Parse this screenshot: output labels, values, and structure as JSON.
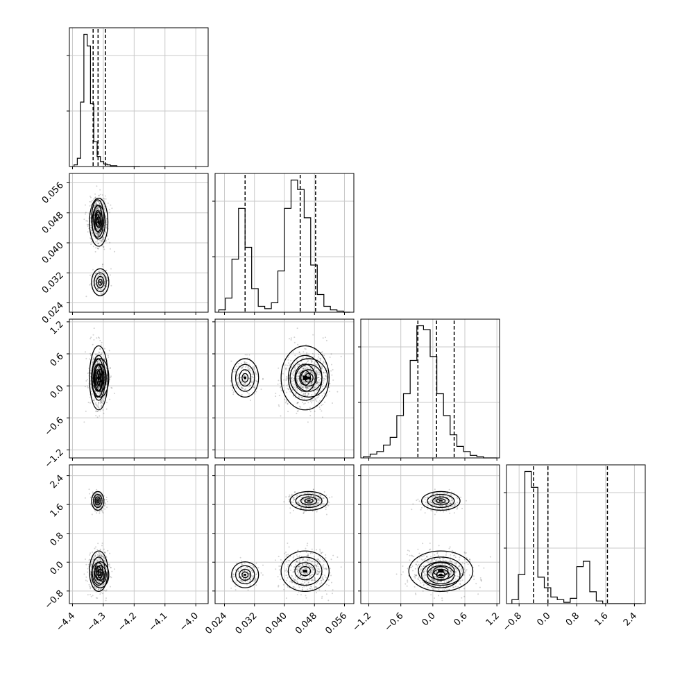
{
  "chart_data": {
    "type": "corner",
    "grid": true,
    "params": [
      {
        "range": [
          -4.41,
          -3.96
        ],
        "ticks": [
          -4.4,
          -4.3,
          -4.2,
          -4.1,
          -4.0
        ],
        "tick_labels": [
          "−4.4",
          "−4.3",
          "−4.2",
          "−4.1",
          "−4.0"
        ]
      },
      {
        "range": [
          0.0215,
          0.0585
        ],
        "ticks": [
          0.024,
          0.032,
          0.04,
          0.048,
          0.056
        ],
        "tick_labels": [
          "0.024",
          "0.032",
          "0.040",
          "0.048",
          "0.056"
        ]
      },
      {
        "range": [
          -1.35,
          1.25
        ],
        "ticks": [
          -1.2,
          -0.6,
          0.0,
          0.6,
          1.2
        ],
        "tick_labels": [
          "−1.2",
          "−0.6",
          "0.0",
          "0.6",
          "1.2"
        ]
      },
      {
        "range": [
          -1.15,
          2.7
        ],
        "ticks": [
          -0.8,
          0.0,
          0.8,
          1.6,
          2.4
        ],
        "tick_labels": [
          "−0.8",
          "0.0",
          "0.8",
          "1.6",
          "2.4"
        ]
      }
    ],
    "diagonal": [
      {
        "bin_start": -4.395,
        "bin_width": 0.0107,
        "counts": [
          2,
          10,
          78,
          160,
          146,
          76,
          30,
          12,
          6,
          3,
          2,
          1,
          1,
          0,
          0,
          0,
          0,
          0,
          0,
          0
        ],
        "quantiles": [
          -4.333,
          -4.317,
          -4.293
        ]
      },
      {
        "bin_start": 0.0225,
        "bin_width": 0.00175,
        "counts": [
          2,
          12,
          45,
          88,
          55,
          20,
          5,
          3,
          8,
          35,
          88,
          112,
          104,
          80,
          40,
          15,
          5,
          2,
          1,
          0
        ],
        "quantiles": [
          0.0295,
          0.0442,
          0.0483
        ]
      },
      {
        "bin_start": -1.3,
        "bin_width": 0.125,
        "counts": [
          1,
          3,
          5,
          10,
          16,
          33,
          50,
          76,
          103,
          100,
          79,
          50,
          33,
          18,
          9,
          5,
          2,
          1,
          0,
          0
        ],
        "quantiles": [
          -0.28,
          0.07,
          0.4
        ]
      },
      {
        "bin_start": -1.0,
        "bin_width": 0.18,
        "counts": [
          3,
          22,
          100,
          88,
          20,
          12,
          5,
          3,
          1,
          4,
          28,
          32,
          9,
          2,
          0,
          0,
          0,
          0,
          0,
          0
        ],
        "quantiles": [
          -0.4,
          0.0,
          1.65
        ]
      }
    ],
    "modes": [
      {
        "weight": 0.6,
        "mean": [
          -4.315,
          0.0455,
          0.15,
          -0.25
        ],
        "sd": [
          0.015,
          0.0032,
          0.3,
          0.28
        ]
      },
      {
        "weight": 0.3,
        "mean": [
          -4.318,
          0.0465,
          0.15,
          1.7
        ],
        "sd": [
          0.01,
          0.0025,
          0.18,
          0.13
        ]
      },
      {
        "weight": 0.25,
        "mean": [
          -4.31,
          0.0295,
          0.15,
          -0.35
        ],
        "sd": [
          0.014,
          0.0018,
          0.18,
          0.18
        ]
      }
    ]
  }
}
